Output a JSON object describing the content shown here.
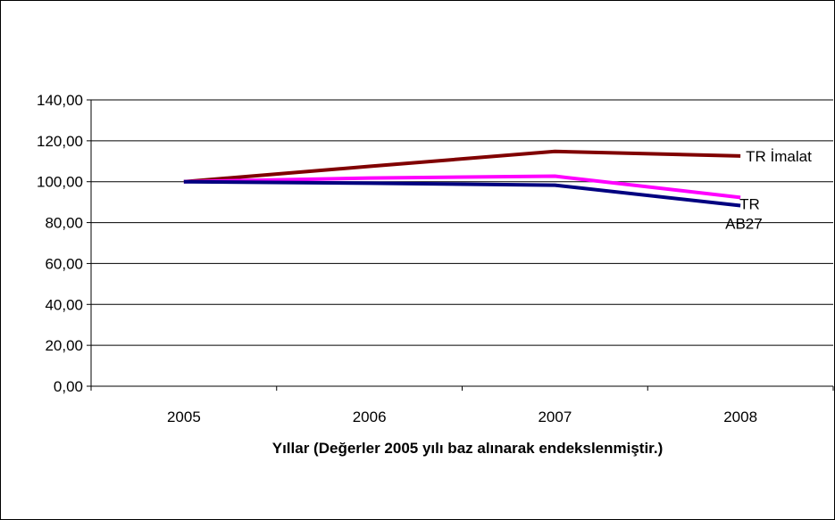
{
  "chart_data": {
    "type": "line",
    "title": "",
    "xlabel": "Yıllar (Değerler 2005 yılı baz alınarak endekslenmiştir.)",
    "ylabel": "",
    "categories": [
      "2005",
      "2006",
      "2007",
      "2008"
    ],
    "ylim": [
      0,
      140
    ],
    "yticks": [
      "0,00",
      "20,00",
      "40,00",
      "60,00",
      "80,00",
      "100,00",
      "120,00",
      "140,00"
    ],
    "grid": true,
    "legend": "none",
    "series": [
      {
        "name": "TR İmalat",
        "values": [
          100.0,
          107.5,
          114.8,
          112.6
        ],
        "color": "#800000"
      },
      {
        "name": "TR",
        "values": [
          100.0,
          101.8,
          102.7,
          92.3
        ],
        "color": "#ff00ff"
      },
      {
        "name": "AB27",
        "values": [
          100.0,
          99.3,
          98.3,
          88.3
        ],
        "color": "#000080"
      }
    ]
  }
}
